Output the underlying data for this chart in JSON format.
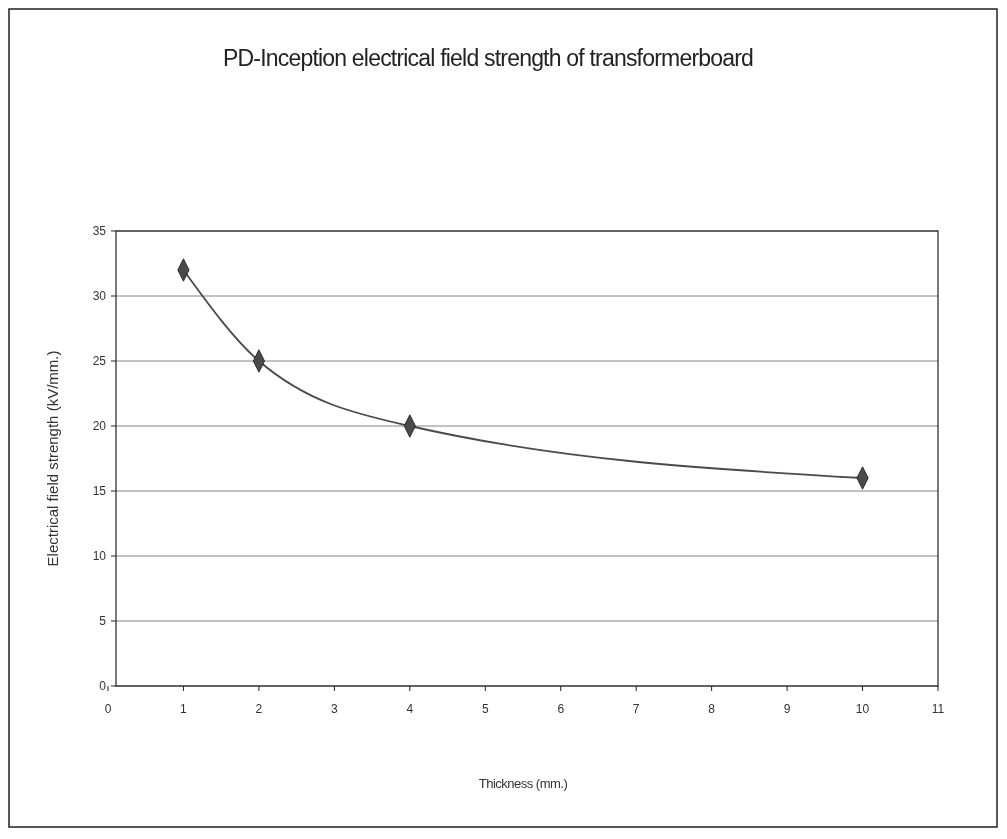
{
  "chart_data": {
    "type": "line",
    "title": "PD-Inception electrical field strength of transformerboard",
    "xlabel": "Thickness (mm.)",
    "ylabel": "Electrical field strength (kV/mm.)",
    "x": [
      1,
      2,
      4,
      10
    ],
    "series": [
      {
        "color": "#4a4a4a",
        "values": [
          32,
          25,
          20,
          16
        ]
      }
    ],
    "xlim": [
      0,
      11
    ],
    "xticks": [
      0,
      1,
      2,
      3,
      4,
      5,
      6,
      7,
      8,
      9,
      10,
      11
    ],
    "ylim": [
      0,
      35
    ],
    "yticks": [
      0,
      5,
      10,
      15,
      20,
      25,
      30,
      35
    ],
    "grid": "y",
    "marker": "diamond",
    "line_style": "solid"
  }
}
